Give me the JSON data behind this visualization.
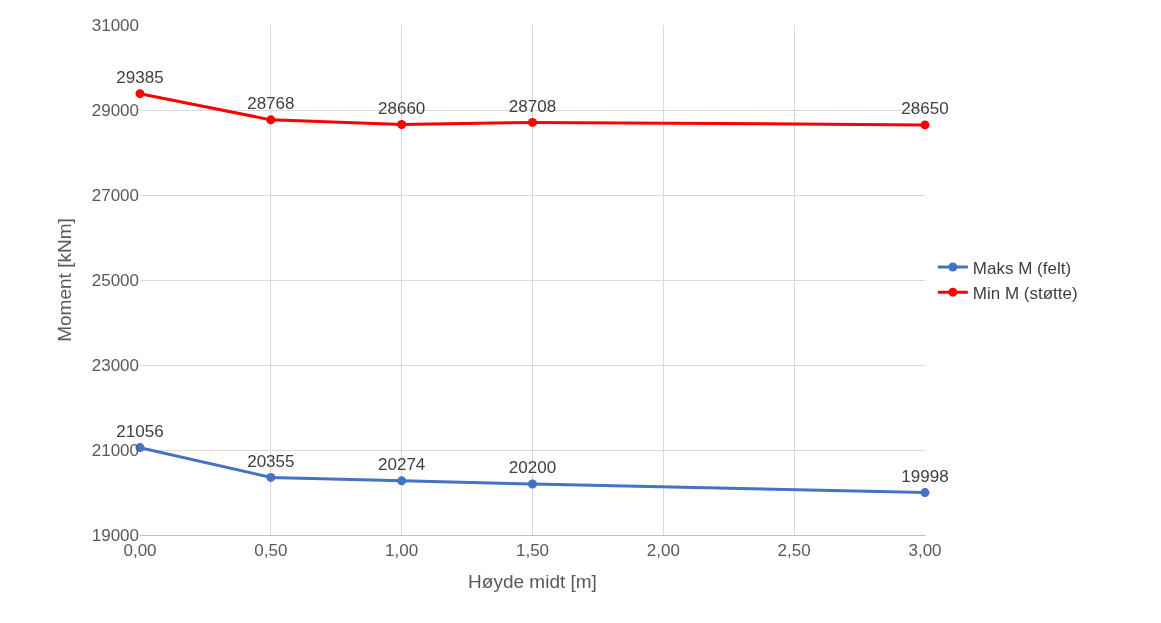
{
  "chart_data": {
    "type": "line",
    "xlabel": "Høyde midt [m]",
    "ylabel": "Moment [kNm]",
    "x": [
      0,
      0.5,
      1,
      1.5,
      3
    ],
    "series": [
      {
        "name": "Maks M (felt)",
        "color": "#4472c4",
        "values": [
          21056,
          20355,
          20274,
          20200,
          19998
        ]
      },
      {
        "name": "Min M (støtte)",
        "color": "#ff0000",
        "values": [
          29385,
          28768,
          28660,
          28708,
          28650
        ]
      }
    ],
    "xlim": [
      0,
      3
    ],
    "xticks": [
      {
        "value": 0,
        "label": "0,00"
      },
      {
        "value": 0.5,
        "label": "0,50"
      },
      {
        "value": 1,
        "label": "1,00"
      },
      {
        "value": 1.5,
        "label": "1,50"
      },
      {
        "value": 2,
        "label": "2,00"
      },
      {
        "value": 2.5,
        "label": "2,50"
      },
      {
        "value": 3,
        "label": "3,00"
      }
    ],
    "ylim": [
      19000,
      31000
    ],
    "yticks": [
      19000,
      21000,
      23000,
      25000,
      27000,
      29000,
      31000
    ],
    "grid": true,
    "legend": "right",
    "marker": "circle",
    "line_style": "solid",
    "data_labels": true
  }
}
